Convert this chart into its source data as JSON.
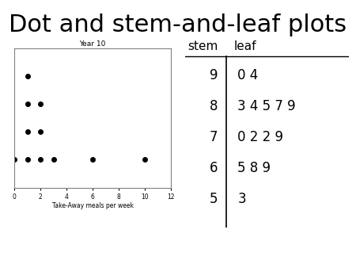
{
  "title": "Dot and stem-and-leaf plots",
  "title_fontsize": 22,
  "background_color": "#ffffff",
  "dot_plot": {
    "title": "Year 10",
    "xlabel": "Take-Away meals per week",
    "xlim": [
      0,
      12
    ],
    "ylim": [
      0,
      5
    ],
    "xticks": [
      0,
      2,
      4,
      6,
      8,
      10,
      12
    ],
    "points": [
      [
        0,
        1
      ],
      [
        1,
        1
      ],
      [
        1,
        2
      ],
      [
        1,
        3
      ],
      [
        1,
        4
      ],
      [
        2,
        1
      ],
      [
        2,
        2
      ],
      [
        2,
        3
      ],
      [
        3,
        1
      ],
      [
        6,
        1
      ],
      [
        10,
        1
      ]
    ]
  },
  "stem_leaf": {
    "stems": [
      9,
      8,
      7,
      6,
      5
    ],
    "leaves": [
      "0 4",
      "3 4 5 7 9",
      "0 2 2 9",
      "5 8 9",
      "3"
    ],
    "header_stem": "stem",
    "header_leaf": "leaf"
  }
}
